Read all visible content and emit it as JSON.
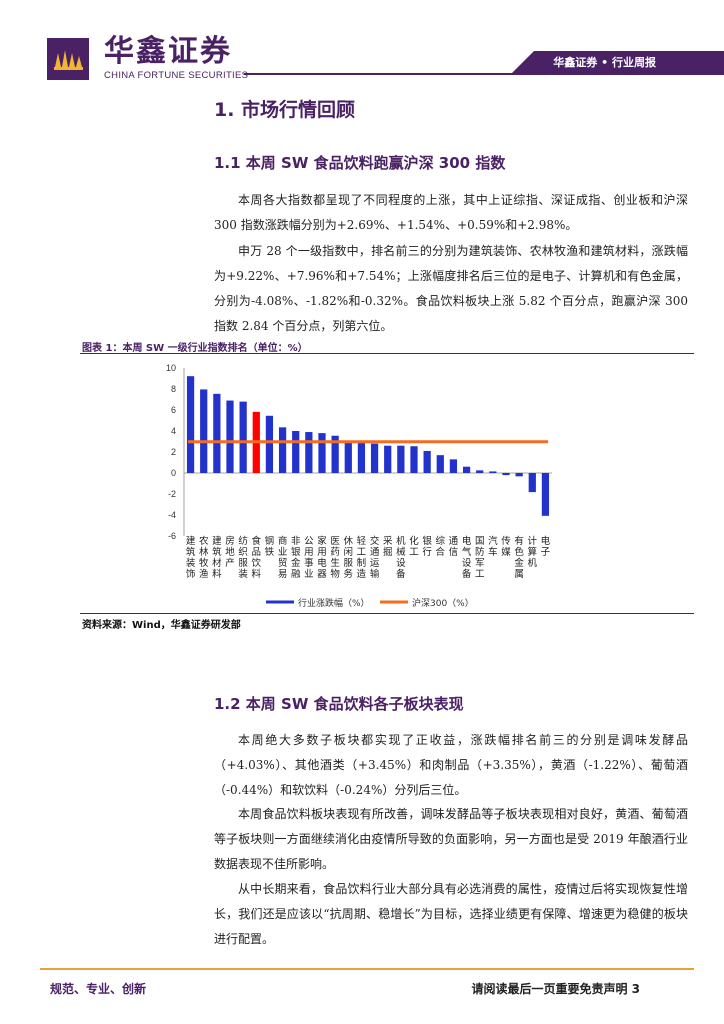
{
  "header": {
    "logo_cn": "华鑫证券",
    "logo_en": "CHINA FORTUNE SECURITIES",
    "report_tag": "华鑫证券 • 行业周报"
  },
  "section1": {
    "title": "1.  市场行情回顾"
  },
  "section1_1": {
    "title": "1.1 本周 SW 食品饮料跑赢沪深 300 指数",
    "paragraphs": [
      "本周各大指数都呈现了不同程度的上涨，其中上证综指、深证成指、创业板和沪深 300 指数涨跌幅分别为+2.69%、+1.54%、+0.59%和+2.98%。",
      "申万 28 个一级指数中，排名前三的分别为建筑装饰、农林牧渔和建筑材料，涨跌幅为+9.22%、+7.96%和+7.54%；上涨幅度排名后三位的是电子、计算机和有色金属，分别为-4.08%、-1.82%和-0.32%。食品饮料板块上涨 5.82 个百分点，跑赢沪深 300 指数 2.84 个百分点，列第六位。"
    ]
  },
  "figure1": {
    "title": "图表 1：本周 SW 一级行业指数排名（单位：%）",
    "source": "资料来源：Wind，华鑫证券研发部"
  },
  "chart_data": {
    "type": "bar",
    "categories": [
      "建筑装饰",
      "农林牧渔",
      "建筑材料",
      "房地产",
      "纺织服装",
      "食品饮料",
      "钢铁",
      "商业贸易",
      "非银金融",
      "公用事业",
      "家用电器",
      "医药生物",
      "休闲服务",
      "轻工制造",
      "交通运输",
      "采掘",
      "机械设备",
      "化工",
      "银行",
      "综合",
      "通信",
      "电气设备",
      "国防军工",
      "汽车",
      "传媒",
      "有色金属",
      "计算机",
      "电子"
    ],
    "series": [
      {
        "name": "行业涨跌幅（%）",
        "values": [
          9.22,
          7.96,
          7.54,
          6.9,
          6.8,
          5.82,
          5.45,
          4.35,
          4.0,
          3.9,
          3.8,
          3.55,
          2.9,
          2.85,
          2.8,
          2.6,
          2.6,
          2.55,
          2.1,
          1.7,
          1.3,
          0.6,
          0.25,
          0.15,
          -0.2,
          -0.32,
          -1.82,
          -4.08
        ],
        "color": "#2233cc",
        "highlight_index": 5,
        "highlight_color": "#ff0000"
      },
      {
        "name": "沪深300（%）",
        "value": 2.98,
        "color": "#f36c21",
        "type": "line"
      }
    ],
    "ylim": [
      -6,
      10
    ],
    "yticks": [
      -6,
      -4,
      -2,
      0,
      2,
      4,
      6,
      8,
      10
    ],
    "legend": "bottom"
  },
  "section1_2": {
    "title": "1.2 本周 SW 食品饮料各子板块表现",
    "paragraphs": [
      "本周绝大多数子板块都实现了正收益，涨跌幅排名前三的分别是调味发酵品（+4.03%）、其他酒类（+3.45%）和肉制品（+3.35%），黄酒（-1.22%）、葡萄酒（-0.44%）和软饮料（-0.24%）分列后三位。",
      "本周食品饮料板块表现有所改善，调味发酵品等子板块表现相对良好，黄酒、葡萄酒等子板块则一方面继续消化由疫情所导致的负面影响，另一方面也是受 2019 年酿酒行业数据表现不佳所影响。",
      "从中长期来看，食品饮料行业大部分具有必选消费的属性，疫情过后将实现恢复性增长，我们还是应该以“抗周期、稳增长”为目标，选择业绩更有保障、增速更为稳健的板块进行配置。"
    ]
  },
  "footer": {
    "left": "规范、专业、创新",
    "right": "请阅读最后一页重要免责声明 3"
  }
}
